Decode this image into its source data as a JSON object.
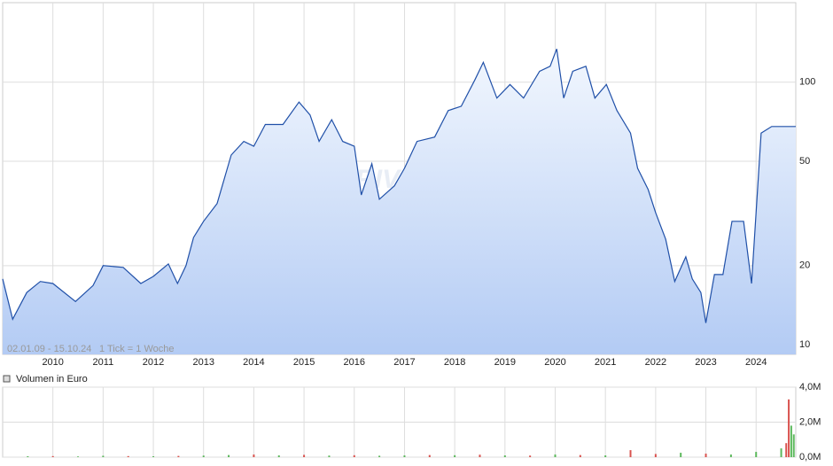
{
  "chart_data": [
    {
      "type": "line",
      "log_scale": true,
      "grid": true,
      "color": "#2050a8",
      "annotations": [
        "02.01.09 - 15.10.24",
        "1 Tick = 1 Woche"
      ],
      "watermark": "ARIVA.DE",
      "xlim": [
        2009.0,
        2024.79
      ],
      "xticks": [
        2010,
        2011,
        2012,
        2013,
        2014,
        2015,
        2016,
        2017,
        2018,
        2019,
        2020,
        2021,
        2022,
        2023,
        2024
      ],
      "ylim": [
        9.18,
        201
      ],
      "yticks": [
        10,
        20,
        50,
        100
      ],
      "x": [
        2009.0,
        2009.2,
        2009.48,
        2009.75,
        2010.0,
        2010.45,
        2010.8,
        2011.0,
        2011.4,
        2011.75,
        2012.0,
        2012.3,
        2012.48,
        2012.65,
        2012.8,
        2013.0,
        2013.27,
        2013.55,
        2013.8,
        2014.0,
        2014.23,
        2014.58,
        2014.9,
        2015.12,
        2015.3,
        2015.55,
        2015.77,
        2016.0,
        2016.14,
        2016.35,
        2016.5,
        2016.8,
        2017.0,
        2017.25,
        2017.6,
        2017.87,
        2018.13,
        2018.4,
        2018.57,
        2018.84,
        2019.1,
        2019.37,
        2019.69,
        2019.9,
        2020.03,
        2020.17,
        2020.35,
        2020.61,
        2020.79,
        2021.02,
        2021.23,
        2021.5,
        2021.64,
        2021.85,
        2022.0,
        2022.2,
        2022.38,
        2022.6,
        2022.73,
        2022.9,
        2023.0,
        2023.17,
        2023.34,
        2023.52,
        2023.75,
        2023.91,
        2024.0,
        2024.1,
        2024.31,
        2024.79
      ],
      "values": [
        17.8,
        12.5,
        15.8,
        17.4,
        17.1,
        14.6,
        16.8,
        20,
        19.7,
        17.1,
        18.2,
        20.3,
        17.1,
        20,
        25.6,
        29.5,
        34.5,
        52.8,
        59.5,
        57,
        69,
        69,
        84,
        75,
        59.5,
        72,
        59.5,
        57,
        37.2,
        48.9,
        35.8,
        40.3,
        47,
        59.5,
        61.8,
        78,
        81,
        102,
        119,
        87,
        98,
        87,
        110,
        115,
        134,
        87,
        110,
        115,
        87,
        98,
        78,
        64,
        47,
        39,
        31.8,
        25.2,
        17.4,
        21.6,
        17.8,
        15.8,
        12.1,
        18.5,
        18.5,
        29.5,
        29.5,
        17.1,
        31.8,
        64,
        67.8,
        67.8
      ]
    },
    {
      "type": "bar",
      "title": "Volumen in Euro",
      "grid": true,
      "xlim": [
        2009.0,
        2024.79
      ],
      "xticks": [
        2010,
        2011,
        2012,
        2013,
        2014,
        2015,
        2016,
        2017,
        2018,
        2019,
        2020,
        2021,
        2022,
        2023,
        2024
      ],
      "ylim": [
        0,
        4000000
      ],
      "yticks": [
        {
          "value": 0,
          "label": "0,0M"
        },
        {
          "value": 2000000,
          "label": "2,0M"
        },
        {
          "value": 4000000,
          "label": "4,0M"
        }
      ],
      "x": [
        2009.5,
        2010.0,
        2010.5,
        2011.0,
        2011.5,
        2012.0,
        2012.5,
        2013.0,
        2013.5,
        2014.0,
        2014.5,
        2015.0,
        2015.5,
        2016.0,
        2016.5,
        2017.0,
        2017.5,
        2018.0,
        2018.5,
        2019.0,
        2019.5,
        2020.0,
        2020.5,
        2021.0,
        2021.5,
        2022.0,
        2022.5,
        2023.0,
        2023.5,
        2024.0,
        2024.5,
        2024.6,
        2024.65,
        2024.7,
        2024.75
      ],
      "values": [
        50000,
        60000,
        40000,
        80000,
        60000,
        50000,
        70000,
        90000,
        120000,
        150000,
        100000,
        130000,
        90000,
        110000,
        80000,
        100000,
        120000,
        110000,
        140000,
        100000,
        90000,
        150000,
        120000,
        100000,
        400000,
        180000,
        250000,
        200000,
        150000,
        300000,
        500000,
        800000,
        3300000,
        1800000,
        1300000
      ],
      "colors": [
        "#5cb85c",
        "#d9534f",
        "#5cb85c",
        "#5cb85c",
        "#d9534f",
        "#5cb85c",
        "#d9534f",
        "#5cb85c",
        "#5cb85c",
        "#d9534f",
        "#5cb85c",
        "#d9534f",
        "#5cb85c",
        "#d9534f",
        "#5cb85c",
        "#5cb85c",
        "#d9534f",
        "#5cb85c",
        "#d9534f",
        "#5cb85c",
        "#d9534f",
        "#5cb85c",
        "#d9534f",
        "#5cb85c",
        "#d9534f",
        "#d9534f",
        "#5cb85c",
        "#d9534f",
        "#5cb85c",
        "#5cb85c",
        "#5cb85c",
        "#d9534f",
        "#d9534f",
        "#5cb85c",
        "#5cb85c"
      ]
    }
  ]
}
